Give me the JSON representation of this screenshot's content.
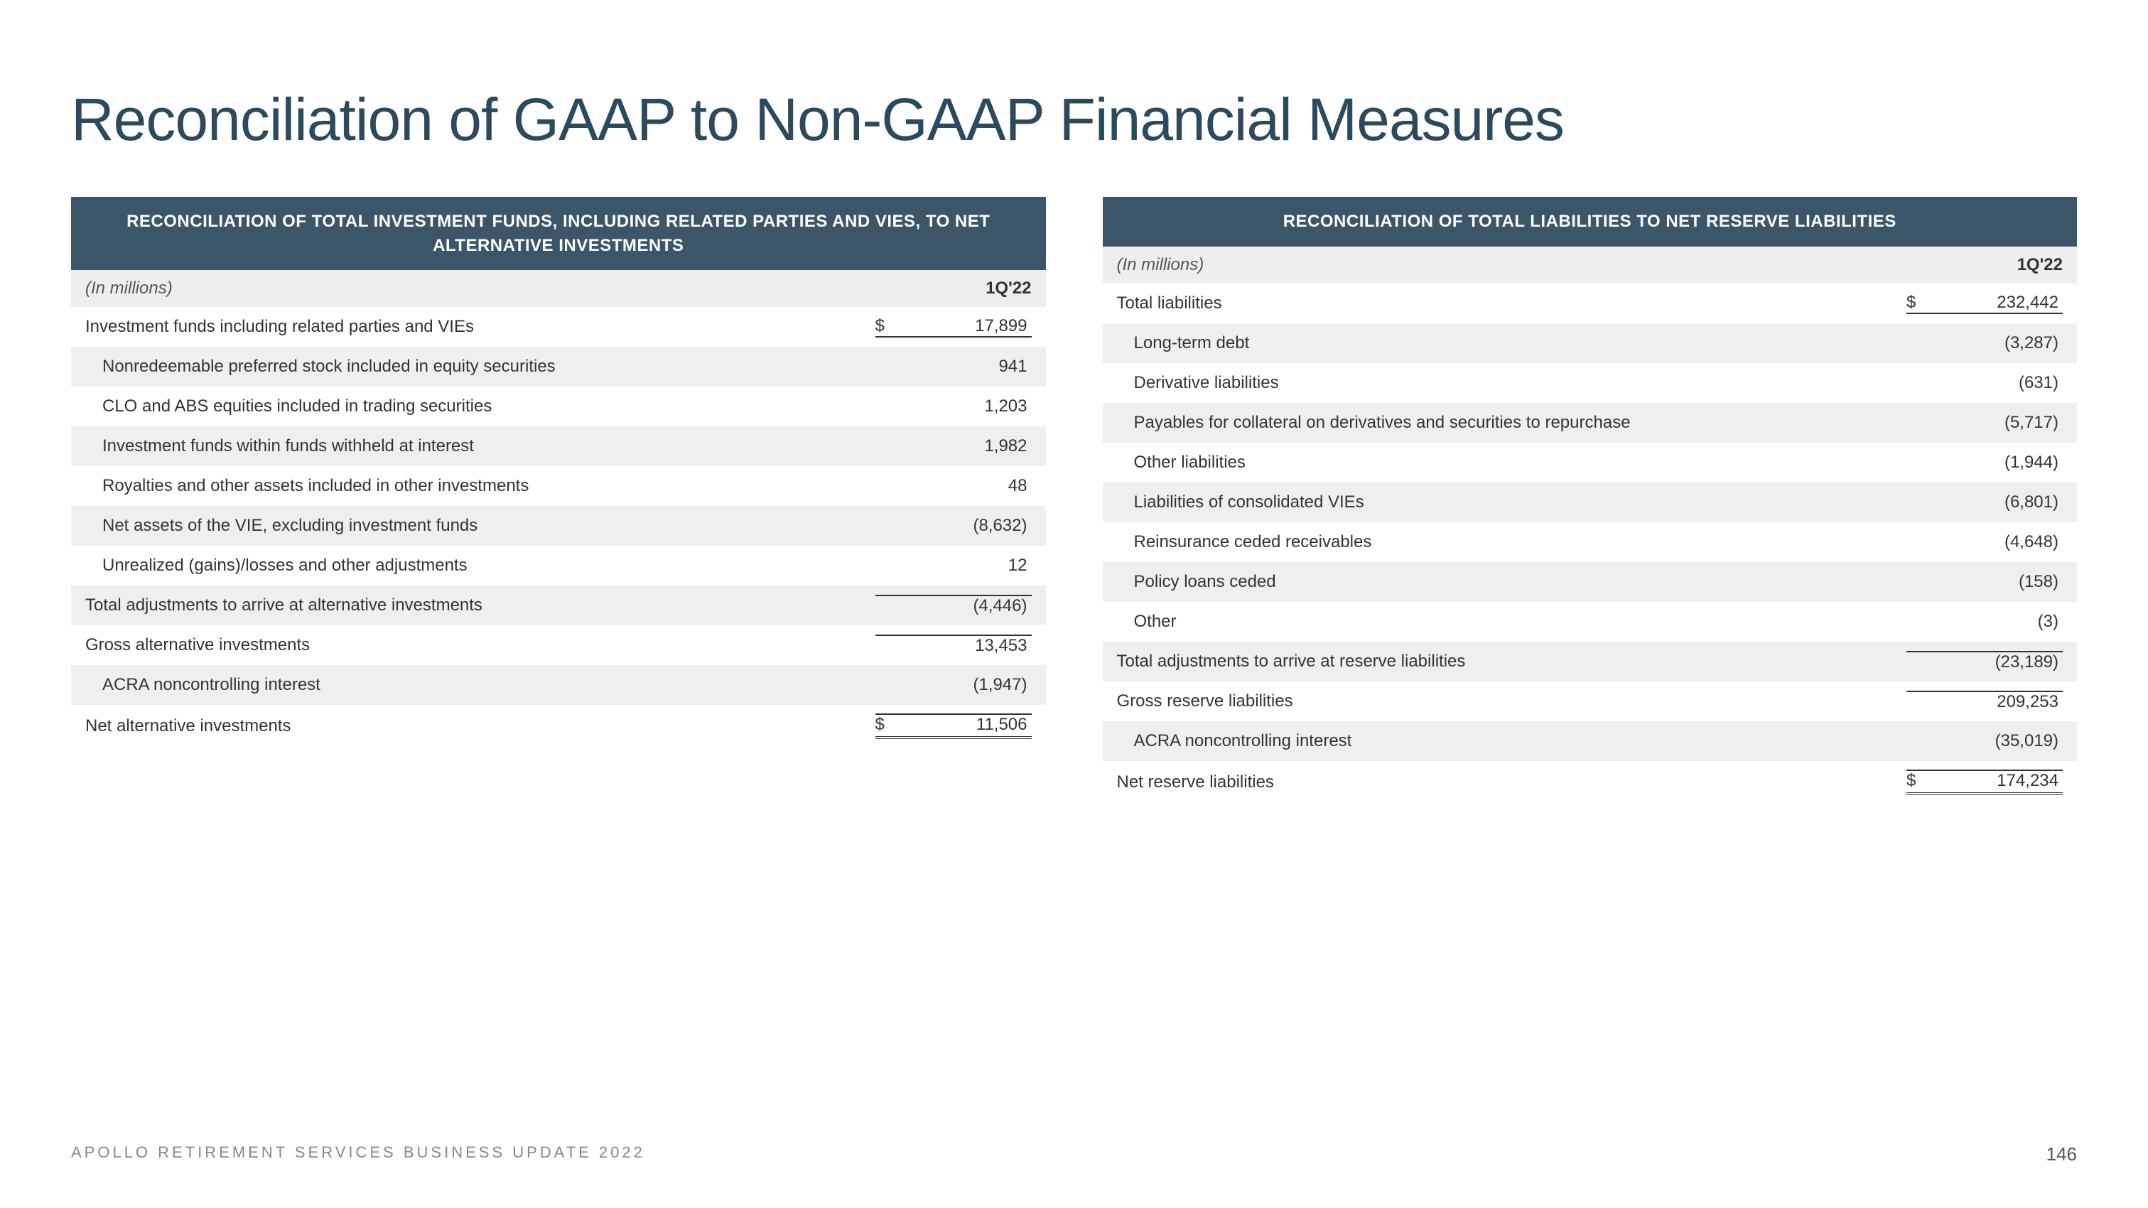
{
  "title": "Reconciliation of GAAP to Non-GAAP Financial Measures",
  "footer": {
    "text": "APOLLO RETIREMENT SERVICES BUSINESS UPDATE 2022",
    "page": "146"
  },
  "colors": {
    "header_bg": "#3a5668",
    "header_fg": "#ffffff",
    "title_color": "#2b4a5e",
    "shade": "#efefef"
  },
  "left": {
    "header": "RECONCILIATION OF TOTAL INVESTMENT FUNDS, INCLUDING RELATED PARTIES AND VIES, TO NET ALTERNATIVE INVESTMENTS",
    "unit": "(In millions)",
    "period": "1Q'22",
    "rows": [
      {
        "label": "Investment funds including related parties and VIEs",
        "currency": "$",
        "value": "17,899",
        "indent": false,
        "shade": false,
        "border": "bottom"
      },
      {
        "label": "Nonredeemable preferred stock included in equity securities",
        "currency": "",
        "value": "941",
        "indent": true,
        "shade": true,
        "border": ""
      },
      {
        "label": "CLO and ABS equities included in trading securities",
        "currency": "",
        "value": "1,203",
        "indent": true,
        "shade": false,
        "border": ""
      },
      {
        "label": "Investment funds within funds withheld at interest",
        "currency": "",
        "value": "1,982",
        "indent": true,
        "shade": true,
        "border": ""
      },
      {
        "label": "Royalties and other assets included in other investments",
        "currency": "",
        "value": "48",
        "indent": true,
        "shade": false,
        "border": ""
      },
      {
        "label": "Net assets of the VIE, excluding investment funds",
        "currency": "",
        "value": "(8,632)",
        "indent": true,
        "shade": true,
        "border": ""
      },
      {
        "label": "Unrealized (gains)/losses and other adjustments",
        "currency": "",
        "value": "12",
        "indent": true,
        "shade": false,
        "border": ""
      },
      {
        "label": "Total adjustments to arrive at alternative investments",
        "currency": "",
        "value": "(4,446)",
        "indent": false,
        "shade": true,
        "border": "top"
      },
      {
        "label": "Gross alternative investments",
        "currency": "",
        "value": "13,453",
        "indent": false,
        "shade": false,
        "border": "top"
      },
      {
        "label": "ACRA noncontrolling interest",
        "currency": "",
        "value": "(1,947)",
        "indent": true,
        "shade": true,
        "border": ""
      },
      {
        "label": "Net alternative investments",
        "currency": "$",
        "value": "11,506",
        "indent": false,
        "shade": false,
        "border": "double"
      }
    ]
  },
  "right": {
    "header": "RECONCILIATION OF TOTAL LIABILITIES TO NET RESERVE LIABILITIES",
    "unit": "(In millions)",
    "period": "1Q'22",
    "rows": [
      {
        "label": "Total liabilities",
        "currency": "$",
        "value": "232,442",
        "indent": false,
        "shade": false,
        "border": "bottom"
      },
      {
        "label": "Long-term debt",
        "currency": "",
        "value": "(3,287)",
        "indent": true,
        "shade": true,
        "border": ""
      },
      {
        "label": "Derivative liabilities",
        "currency": "",
        "value": "(631)",
        "indent": true,
        "shade": false,
        "border": ""
      },
      {
        "label": "Payables for collateral on derivatives and securities to repurchase",
        "currency": "",
        "value": "(5,717)",
        "indent": true,
        "shade": true,
        "border": ""
      },
      {
        "label": "Other liabilities",
        "currency": "",
        "value": "(1,944)",
        "indent": true,
        "shade": false,
        "border": ""
      },
      {
        "label": "Liabilities of consolidated VIEs",
        "currency": "",
        "value": "(6,801)",
        "indent": true,
        "shade": true,
        "border": ""
      },
      {
        "label": "Reinsurance ceded receivables",
        "currency": "",
        "value": "(4,648)",
        "indent": true,
        "shade": false,
        "border": ""
      },
      {
        "label": "Policy loans ceded",
        "currency": "",
        "value": "(158)",
        "indent": true,
        "shade": true,
        "border": ""
      },
      {
        "label": "Other",
        "currency": "",
        "value": "(3)",
        "indent": true,
        "shade": false,
        "border": ""
      },
      {
        "label": "Total adjustments to arrive at reserve liabilities",
        "currency": "",
        "value": "(23,189)",
        "indent": false,
        "shade": true,
        "border": "top"
      },
      {
        "label": "Gross reserve liabilities",
        "currency": "",
        "value": "209,253",
        "indent": false,
        "shade": false,
        "border": "top"
      },
      {
        "label": "ACRA noncontrolling interest",
        "currency": "",
        "value": "(35,019)",
        "indent": true,
        "shade": true,
        "border": ""
      },
      {
        "label": "Net reserve liabilities",
        "currency": "$",
        "value": "174,234",
        "indent": false,
        "shade": false,
        "border": "double"
      }
    ]
  }
}
